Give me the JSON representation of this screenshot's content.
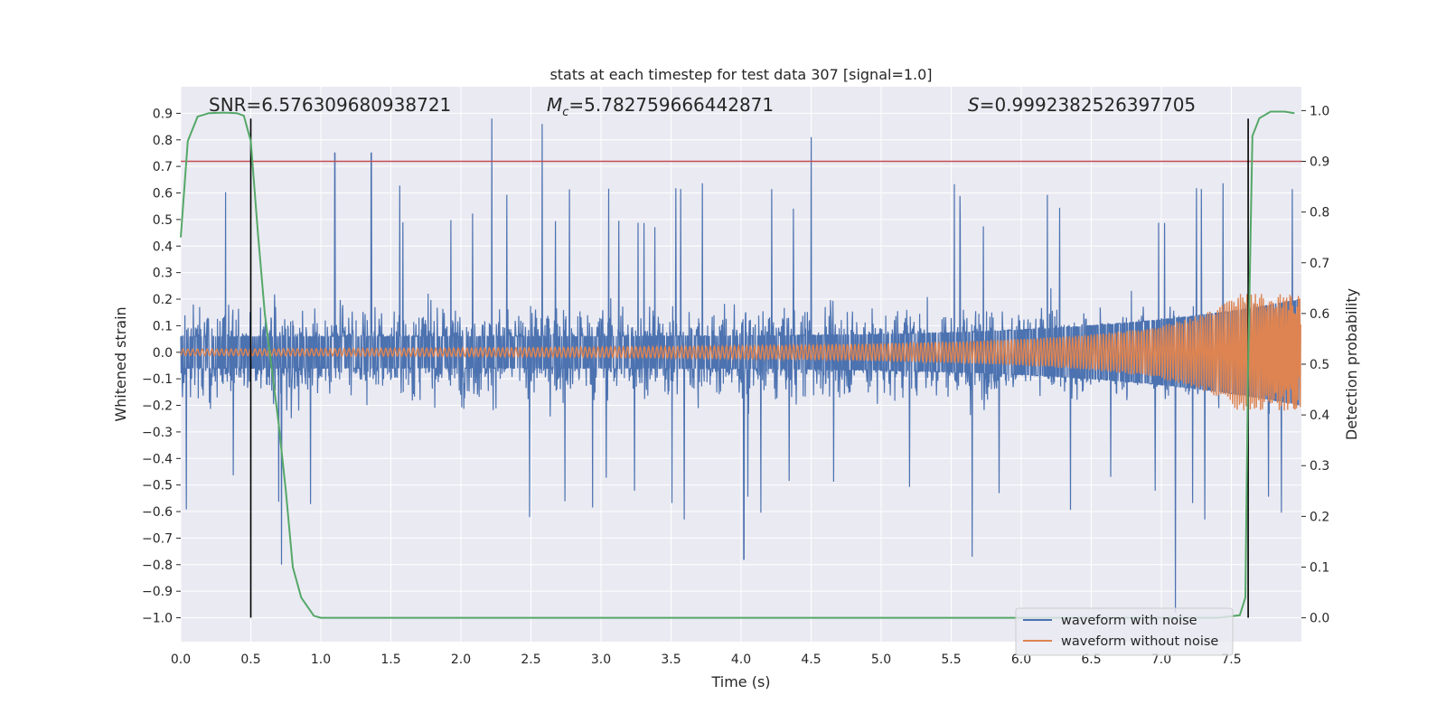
{
  "chart_data": {
    "type": "line",
    "title": "stats at each timestep for test data 307 [signal=1.0]",
    "xlabel": "Time (s)",
    "ylabel": "Whitened strain",
    "y2label": "Detection probability",
    "xlim": [
      0.0,
      8.0
    ],
    "ylim": [
      -1.09,
      1.0
    ],
    "y2lim": [
      -0.047,
      1.047
    ],
    "xticks": [
      "0.0",
      "0.5",
      "1.0",
      "1.5",
      "2.0",
      "2.5",
      "3.0",
      "3.5",
      "4.0",
      "4.5",
      "5.0",
      "5.5",
      "6.0",
      "6.5",
      "7.0",
      "7.5"
    ],
    "yticks": [
      "0.9",
      "0.8",
      "0.7",
      "0.6",
      "0.5",
      "0.4",
      "0.3",
      "0.2",
      "0.1",
      "0.0",
      "−0.1",
      "−0.2",
      "−0.3",
      "−0.4",
      "−0.5",
      "−0.6",
      "−0.7",
      "−0.8",
      "−0.9",
      "−1.0"
    ],
    "y2ticks": [
      "1.0",
      "0.9",
      "0.8",
      "0.7",
      "0.6",
      "0.5",
      "0.4",
      "0.3",
      "0.2",
      "0.1",
      "0.0"
    ],
    "annotations": {
      "snr": "SNR=6.576309680938721",
      "mc_symbol": "M",
      "mc_sub": "c",
      "mc_value": "=5.782759666442871",
      "s_symbol": "S",
      "s_value": "=0.9992382526397705"
    },
    "threshold": {
      "value": 0.9,
      "axis": "y2",
      "color": "#c44e52"
    },
    "vertical_lines": {
      "x": [
        0.5,
        7.62
      ],
      "y_from": -1.0,
      "y_to": 0.88,
      "color": "#000000"
    },
    "series": [
      {
        "name": "waveform with noise",
        "color": "#4c72b0",
        "axis": "y",
        "description": "noisy whitened strain, roughly ±0.3 typical with spikes",
        "peak_points": [
          {
            "x": 1.1,
            "y": 0.75
          },
          {
            "x": 1.36,
            "y": 0.75
          },
          {
            "x": 2.22,
            "y": 0.88
          },
          {
            "x": 2.58,
            "y": 0.86
          },
          {
            "x": 4.5,
            "y": 0.81
          },
          {
            "x": 0.72,
            "y": -0.8
          },
          {
            "x": 4.02,
            "y": -0.78
          },
          {
            "x": 5.65,
            "y": -0.77
          },
          {
            "x": 7.1,
            "y": -0.98
          }
        ]
      },
      {
        "name": "waveform without noise",
        "color": "#dd8452",
        "axis": "y",
        "description": "chirp signal, amplitude grows from ~0.01 to ~0.2 at merger near t=8.0"
      },
      {
        "name": "detection probability",
        "color": "#55a868",
        "axis": "y2",
        "x": [
          0.0,
          0.05,
          0.12,
          0.2,
          0.3,
          0.4,
          0.45,
          0.5,
          0.55,
          0.6,
          0.65,
          0.7,
          0.75,
          0.8,
          0.86,
          0.95,
          1.0,
          2.0,
          3.0,
          4.0,
          5.0,
          6.0,
          7.0,
          7.4,
          7.56,
          7.6,
          7.62,
          7.65,
          7.7,
          7.78,
          7.88,
          7.95
        ],
        "values": [
          0.75,
          0.94,
          0.988,
          0.995,
          0.996,
          0.995,
          0.99,
          0.94,
          0.76,
          0.6,
          0.49,
          0.38,
          0.25,
          0.1,
          0.04,
          0.004,
          0.0,
          0.0,
          0.0,
          0.0,
          0.0,
          0.0,
          0.0,
          0.0,
          0.005,
          0.04,
          0.5,
          0.95,
          0.985,
          0.998,
          0.998,
          0.995
        ]
      }
    ],
    "legend": {
      "position": "bottom-right",
      "entries": [
        "waveform with noise",
        "waveform without noise"
      ]
    }
  }
}
